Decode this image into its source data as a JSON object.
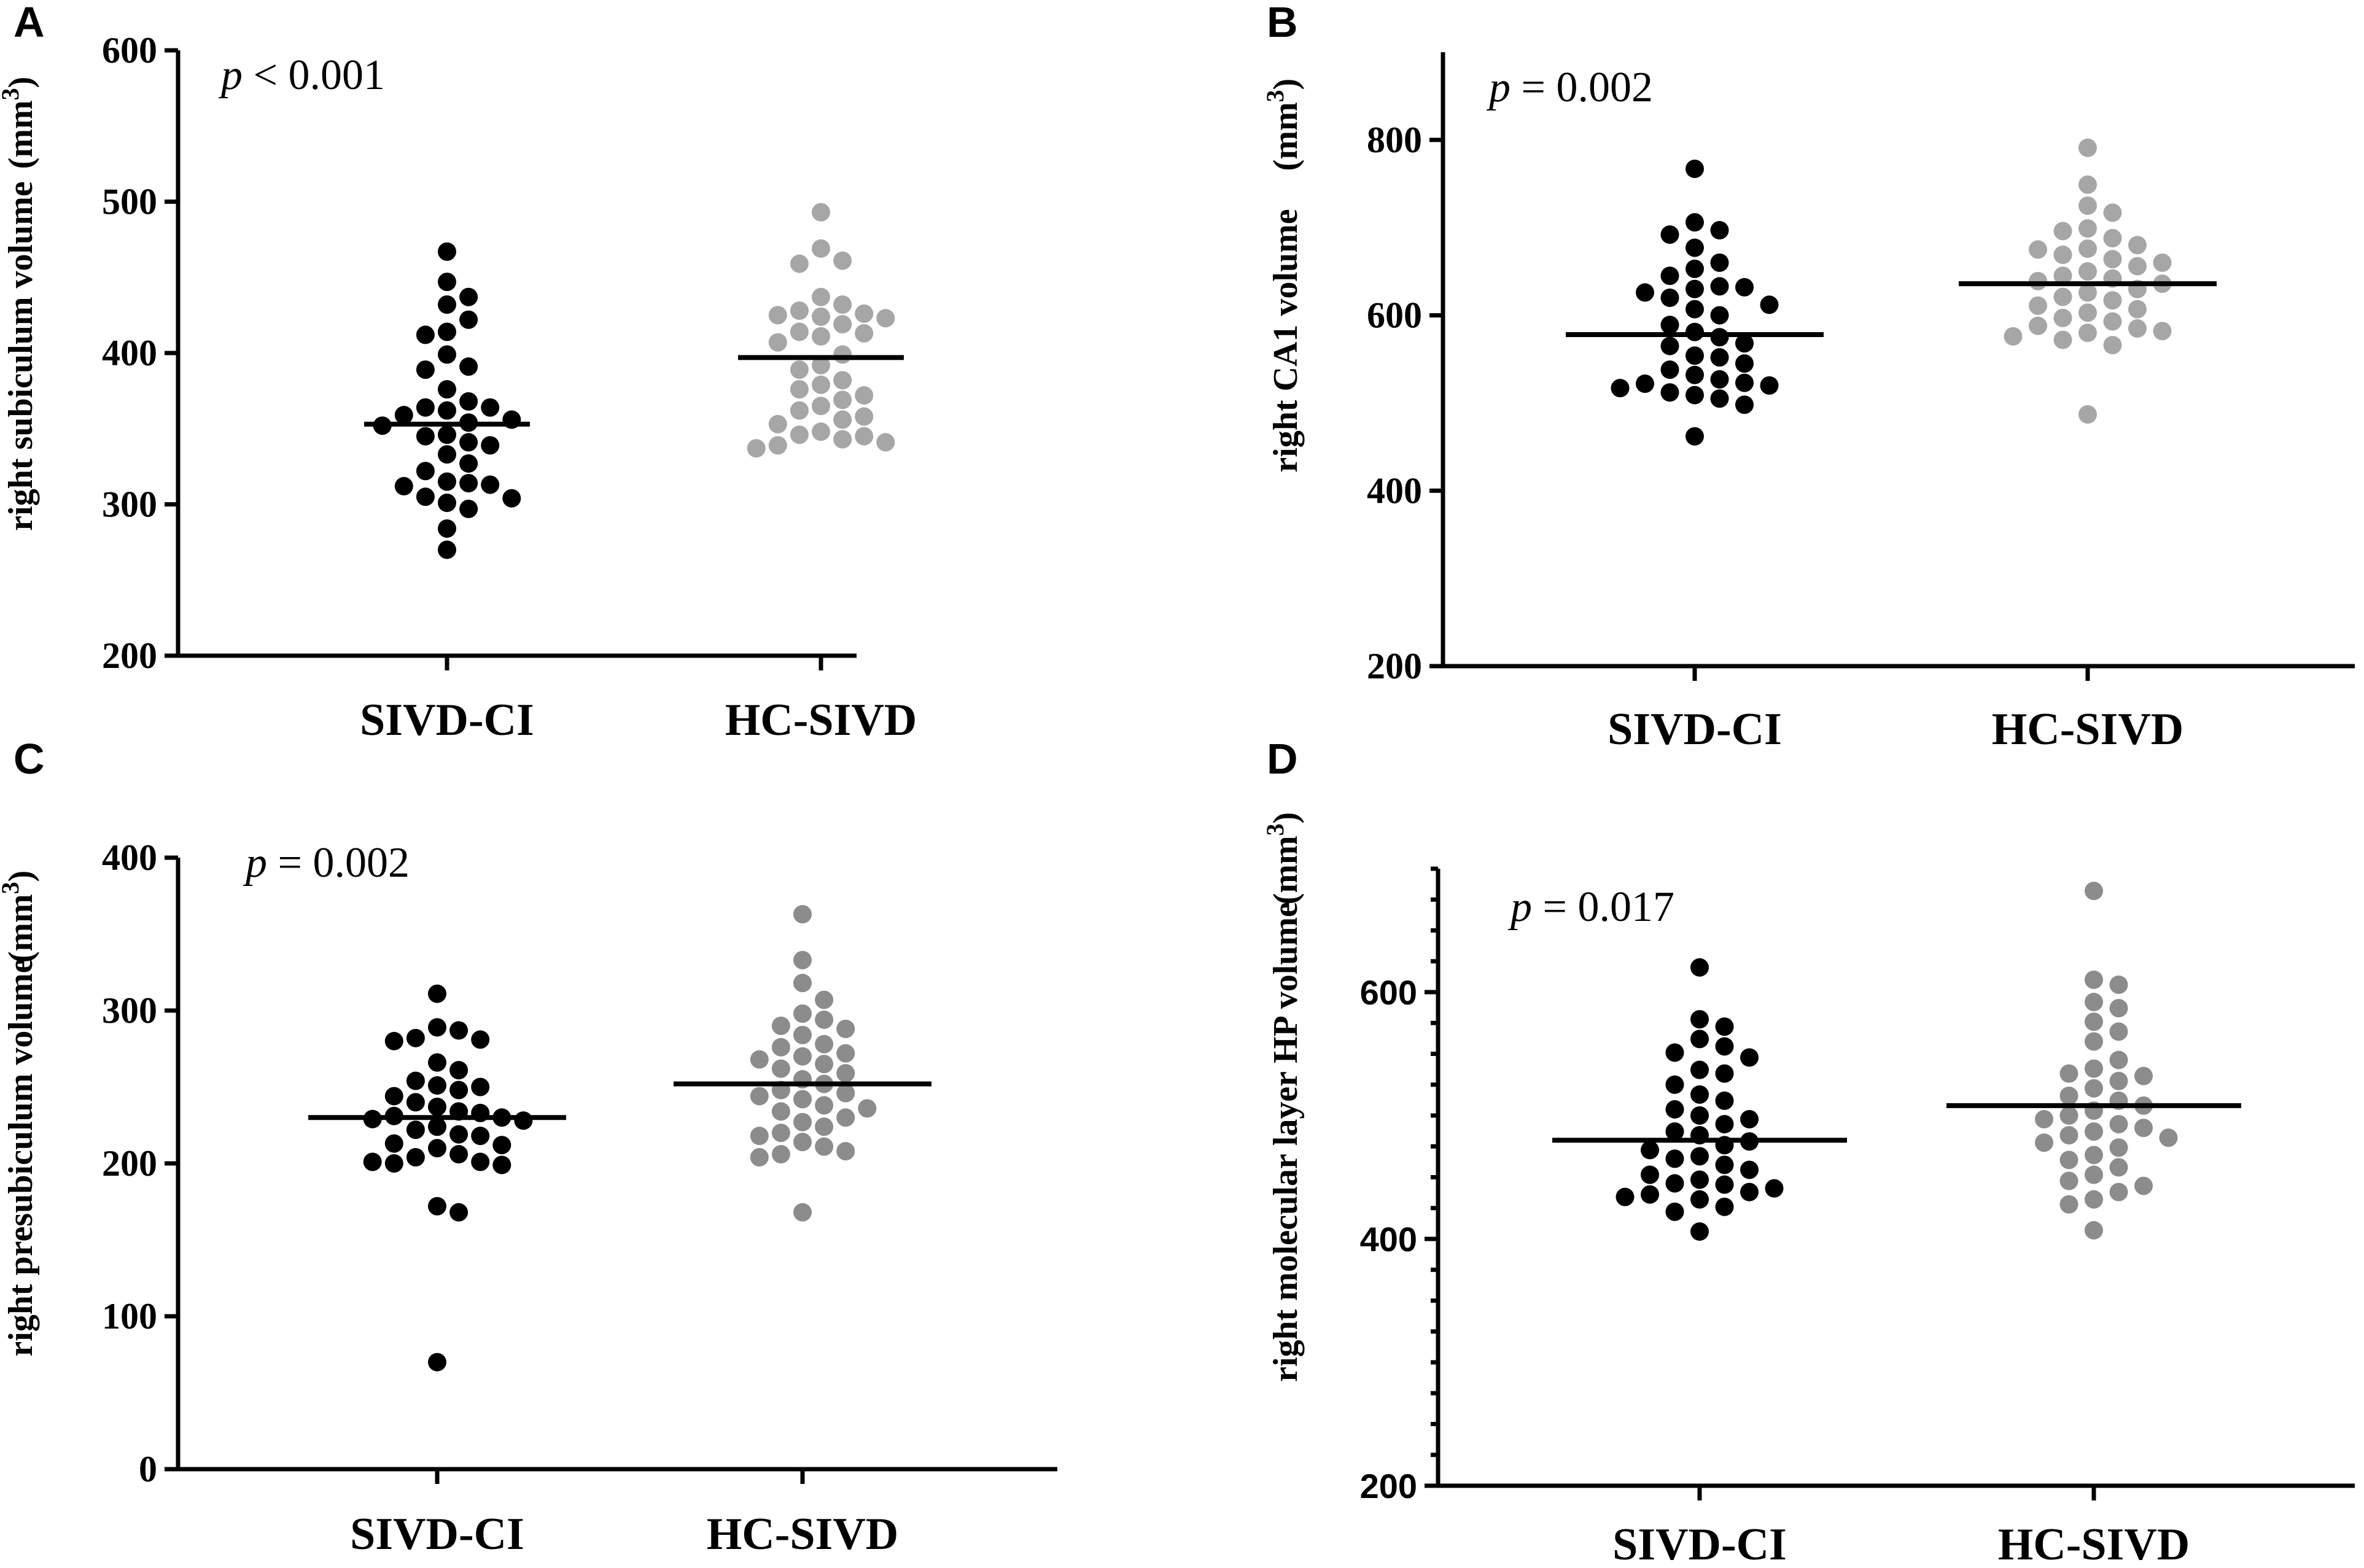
{
  "colors": {
    "group1": "#000000",
    "group2_light": "#a6a6a6",
    "group2_dark": "#8c8c8c"
  },
  "chart_data": [
    {
      "panel": "A",
      "type": "scatter",
      "ylabel": "right subiculum volume",
      "yunit": "(mm3)",
      "p_prefix": "p",
      "p_rest": " < 0.001",
      "ylim": [
        200,
        600
      ],
      "yticks": [
        "200",
        "300",
        "400",
        "500",
        "600"
      ],
      "minor_ticks": false,
      "categories": [
        "SIVD-CI",
        "HC-SIVD"
      ],
      "means": [
        353,
        397
      ],
      "series": [
        {
          "name": "SIVD-CI",
          "values": [
            467,
            447,
            437,
            432,
            422,
            414,
            412,
            399,
            391,
            389,
            376,
            368,
            364,
            364,
            362,
            359,
            356,
            354,
            352,
            346,
            345,
            341,
            339,
            333,
            327,
            322,
            315,
            314,
            313,
            312,
            305,
            304,
            301,
            297,
            284,
            270
          ]
        },
        {
          "name": "HC-SIVD",
          "values": [
            493,
            469,
            461,
            459,
            437,
            432,
            428,
            426,
            425,
            424,
            423,
            419,
            414,
            413,
            411,
            407,
            399,
            392,
            389,
            382,
            379,
            376,
            372,
            369,
            365,
            362,
            358,
            356,
            353,
            348,
            346,
            345,
            343,
            341,
            339,
            337
          ]
        }
      ]
    },
    {
      "panel": "B",
      "type": "scatter",
      "ylabel": "right CA1 volume",
      "yunit": "(mm3)",
      "p_prefix": "p",
      "p_rest": " = 0.002",
      "ylim": [
        200,
        900
      ],
      "yticks": [
        "200",
        "400",
        "600",
        "800"
      ],
      "minor_ticks": false,
      "categories": [
        "SIVD-CI",
        "HC-SIVD"
      ],
      "means": [
        578,
        636
      ],
      "series": [
        {
          "name": "SIVD-CI",
          "values": [
            767,
            706,
            697,
            692,
            677,
            660,
            653,
            645,
            633,
            632,
            630,
            626,
            620,
            612,
            607,
            600,
            589,
            581,
            575,
            568,
            565,
            554,
            552,
            545,
            538,
            532,
            527,
            523,
            522,
            520,
            517,
            512,
            509,
            505,
            498,
            462
          ]
        },
        {
          "name": "HC-SIVD",
          "values": [
            791,
            749,
            725,
            717,
            699,
            696,
            688,
            680,
            676,
            675,
            669,
            664,
            660,
            656,
            650,
            645,
            642,
            639,
            636,
            630,
            626,
            621,
            617,
            611,
            607,
            603,
            597,
            593,
            588,
            585,
            582,
            580,
            576,
            572,
            566,
            487
          ]
        }
      ]
    },
    {
      "panel": "C",
      "type": "scatter",
      "ylabel": "right presubiculum volume",
      "yunit": "(mm3)",
      "p_prefix": "p",
      "p_rest": " = 0.002",
      "ylim": [
        0,
        400
      ],
      "yticks": [
        "0",
        "100",
        "200",
        "300",
        "400"
      ],
      "minor_ticks": false,
      "categories": [
        "SIVD-CI",
        "HC-SIVD"
      ],
      "means": [
        230,
        252
      ],
      "series": [
        {
          "name": "SIVD-CI",
          "values": [
            311,
            289,
            287,
            282,
            281,
            280,
            266,
            261,
            254,
            251,
            250,
            248,
            244,
            240,
            237,
            234,
            233,
            231,
            230,
            229,
            228,
            224,
            222,
            219,
            218,
            213,
            212,
            210,
            206,
            204,
            201,
            201,
            200,
            199,
            172,
            168,
            70
          ]
        },
        {
          "name": "HC-SIVD",
          "values": [
            363,
            333,
            318,
            307,
            298,
            294,
            290,
            288,
            284,
            278,
            276,
            272,
            270,
            268,
            265,
            262,
            259,
            255,
            252,
            248,
            246,
            244,
            242,
            238,
            236,
            234,
            230,
            227,
            224,
            220,
            218,
            214,
            211,
            208,
            206,
            204,
            168
          ]
        }
      ]
    },
    {
      "panel": "D",
      "type": "scatter",
      "ylabel": "right molecular layer HP volume",
      "yunit": "(mm3)",
      "p_prefix": "p",
      "p_rest": " = 0.017",
      "ylim": [
        200,
        700
      ],
      "yticks": [
        "200",
        "400",
        "600"
      ],
      "minor_ticks": true,
      "categories": [
        "SIVD-CI",
        "HC-SIVD"
      ],
      "means": [
        480,
        508
      ],
      "series": [
        {
          "name": "SIVD-CI",
          "values": [
            620,
            578,
            572,
            562,
            556,
            551,
            547,
            537,
            534,
            525,
            517,
            512,
            505,
            500,
            497,
            493,
            487,
            484,
            479,
            476,
            472,
            467,
            465,
            460,
            456,
            452,
            448,
            445,
            444,
            441,
            438,
            436,
            434,
            432,
            426,
            422,
            406
          ]
        },
        {
          "name": "HC-SIVD",
          "values": [
            682,
            610,
            606,
            592,
            587,
            576,
            568,
            560,
            545,
            538,
            534,
            532,
            528,
            522,
            516,
            512,
            508,
            504,
            500,
            497,
            493,
            490,
            487,
            484,
            482,
            478,
            474,
            468,
            464,
            458,
            452,
            447,
            443,
            438,
            432,
            428,
            407
          ]
        }
      ]
    }
  ]
}
